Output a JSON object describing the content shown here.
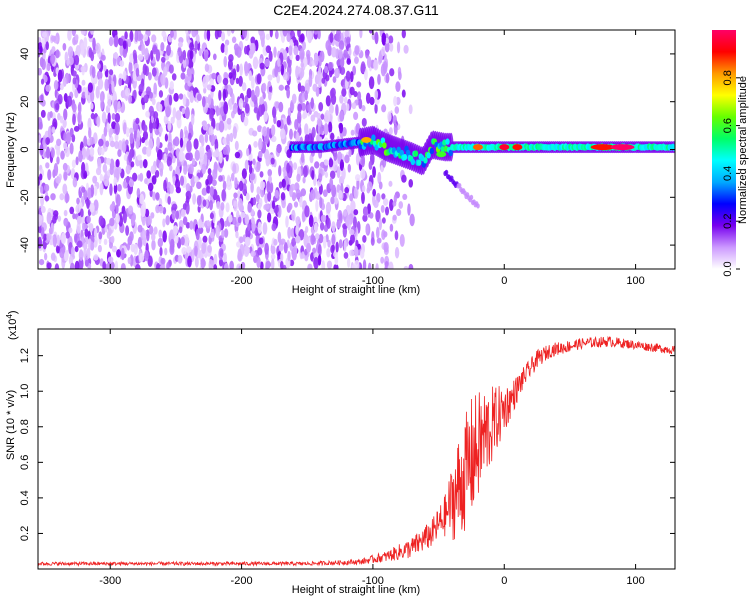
{
  "title": "C2E4.2024.274.08.37.G11",
  "chart_data": [
    {
      "type": "heatmap",
      "xlabel": "Height of straight line (km)",
      "ylabel": "Frequency (Hz)",
      "xlim": [
        -355,
        130
      ],
      "ylim": [
        -50,
        50
      ],
      "x_ticks": [
        -300,
        -200,
        -100,
        0,
        100
      ],
      "y_ticks": [
        -40,
        -20,
        0,
        20,
        40
      ],
      "colorbar": {
        "label": "Normalized spectral amplitude",
        "range": [
          0,
          1
        ],
        "ticks": [
          "0.0",
          "0.2",
          "0.4",
          "0.6",
          "0.8"
        ],
        "colormap": [
          "#ffffff",
          "#cc99ff",
          "#7700ee",
          "#0000ff",
          "#00aaff",
          "#00ffff",
          "#00ff66",
          "#66ff00",
          "#ffff00",
          "#ff9900",
          "#ff0000",
          "#ff0066"
        ]
      },
      "noise_region_x": [
        -355,
        -95
      ],
      "signal_ridge": [
        {
          "x": -160,
          "f": 1
        },
        {
          "x": -140,
          "f": 1
        },
        {
          "x": -125,
          "f": 2
        },
        {
          "x": -110,
          "f": 3
        },
        {
          "x": -100,
          "f": 4
        },
        {
          "x": -90,
          "f": 1
        },
        {
          "x": -80,
          "f": -1
        },
        {
          "x": -70,
          "f": -3
        },
        {
          "x": -62,
          "f": -5
        },
        {
          "x": -55,
          "f": 2
        },
        {
          "x": -45,
          "f": 1
        },
        {
          "x": -35,
          "f": 1
        },
        {
          "x": -20,
          "f": 1
        },
        {
          "x": 0,
          "f": 1
        },
        {
          "x": 20,
          "f": 1
        },
        {
          "x": 50,
          "f": 1
        },
        {
          "x": 80,
          "f": 1
        },
        {
          "x": 100,
          "f": 1
        },
        {
          "x": 130,
          "f": 1
        }
      ],
      "peak_points": [
        {
          "x": -105,
          "f": 4,
          "amp": 0.8
        },
        {
          "x": -48,
          "f": -2,
          "amp": 0.6
        },
        {
          "x": -20,
          "f": 1,
          "amp": 0.85
        },
        {
          "x": 0,
          "f": 1,
          "amp": 0.95
        },
        {
          "x": 10,
          "f": 1,
          "amp": 0.9
        },
        {
          "x": 75,
          "f": 1,
          "amp": 0.9
        },
        {
          "x": 90,
          "f": 1,
          "amp": 1.0
        }
      ]
    },
    {
      "type": "line",
      "xlabel": "Height of straight line (km)",
      "ylabel": "SNR (10 * v/v)",
      "y_exponent": "(x10",
      "y_exponent_power": "4",
      "y_exponent_close": ")",
      "xlim": [
        -355,
        130
      ],
      "ylim": [
        0,
        1.35
      ],
      "x_ticks": [
        -300,
        -200,
        -100,
        0,
        100
      ],
      "y_ticks": [
        0.2,
        0.4,
        0.6,
        0.8,
        1.0,
        1.2
      ],
      "color": "#ee2222",
      "envelope": [
        {
          "x": -355,
          "mean": 0.03,
          "noise": 0.01
        },
        {
          "x": -150,
          "mean": 0.03,
          "noise": 0.01
        },
        {
          "x": -110,
          "mean": 0.04,
          "noise": 0.015
        },
        {
          "x": -90,
          "mean": 0.07,
          "noise": 0.03
        },
        {
          "x": -70,
          "mean": 0.12,
          "noise": 0.06
        },
        {
          "x": -55,
          "mean": 0.2,
          "noise": 0.08
        },
        {
          "x": -45,
          "mean": 0.3,
          "noise": 0.12
        },
        {
          "x": -35,
          "mean": 0.45,
          "noise": 0.3
        },
        {
          "x": -25,
          "mean": 0.62,
          "noise": 0.35
        },
        {
          "x": -15,
          "mean": 0.75,
          "noise": 0.28
        },
        {
          "x": -5,
          "mean": 0.85,
          "noise": 0.18
        },
        {
          "x": 5,
          "mean": 0.95,
          "noise": 0.1
        },
        {
          "x": 15,
          "mean": 1.08,
          "noise": 0.06
        },
        {
          "x": 25,
          "mean": 1.18,
          "noise": 0.05
        },
        {
          "x": 35,
          "mean": 1.23,
          "noise": 0.04
        },
        {
          "x": 60,
          "mean": 1.27,
          "noise": 0.03
        },
        {
          "x": 80,
          "mean": 1.28,
          "noise": 0.03
        },
        {
          "x": 100,
          "mean": 1.26,
          "noise": 0.025
        },
        {
          "x": 130,
          "mean": 1.23,
          "noise": 0.025
        }
      ]
    }
  ]
}
